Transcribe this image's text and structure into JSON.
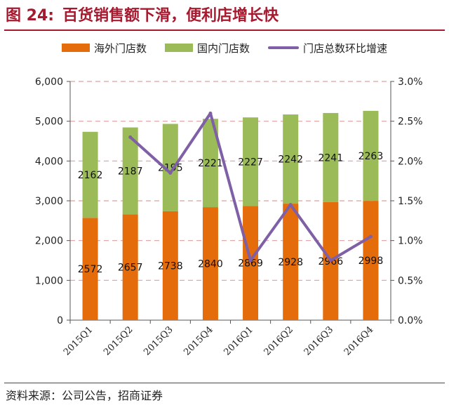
{
  "figure": {
    "label": "图 24:",
    "title": "百货销售额下滑，便利店增长快"
  },
  "source": "资料来源：公司公告，招商证券",
  "colors": {
    "title": "#a6192e",
    "overseas": "#e46c0a",
    "domestic": "#9bbb59",
    "growth": "#7f5fa6",
    "grid": "#d9a3a3"
  },
  "chart_data": {
    "type": "bar",
    "stacked": true,
    "categories": [
      "2015Q1",
      "2015Q2",
      "2015Q3",
      "2015Q4",
      "2016Q1",
      "2016Q2",
      "2016Q3",
      "2016Q4"
    ],
    "series": [
      {
        "name": "海外门店数",
        "type": "bar",
        "axis": "left",
        "values": [
          2572,
          2657,
          2738,
          2840,
          2869,
          2928,
          2966,
          2998
        ],
        "labels": [
          "2572",
          "2657",
          "2738",
          "2840",
          "2869",
          "2928",
          "2966",
          "2998"
        ]
      },
      {
        "name": "国内门店数",
        "type": "bar",
        "axis": "left",
        "values": [
          2162,
          2187,
          2195,
          2221,
          2227,
          2242,
          2241,
          2263
        ],
        "labels": [
          "2162",
          "2187",
          "2195",
          "2221",
          "2227",
          "2242",
          "2241",
          "2263"
        ]
      },
      {
        "name": "门店总数环比增速",
        "type": "line",
        "axis": "right",
        "values": [
          null,
          2.3,
          1.85,
          2.6,
          0.75,
          1.45,
          0.75,
          1.05
        ]
      }
    ],
    "ylim": [
      0,
      6000
    ],
    "yticks": [
      "0",
      "1,000",
      "2,000",
      "3,000",
      "4,000",
      "5,000",
      "6,000"
    ],
    "y2lim": [
      0,
      3.0
    ],
    "y2ticks": [
      "0.0%",
      "0.5%",
      "1.0%",
      "1.5%",
      "2.0%",
      "2.5%",
      "3.0%"
    ],
    "xlabel": "",
    "ylabel": "",
    "grid": true,
    "legend": "top"
  }
}
